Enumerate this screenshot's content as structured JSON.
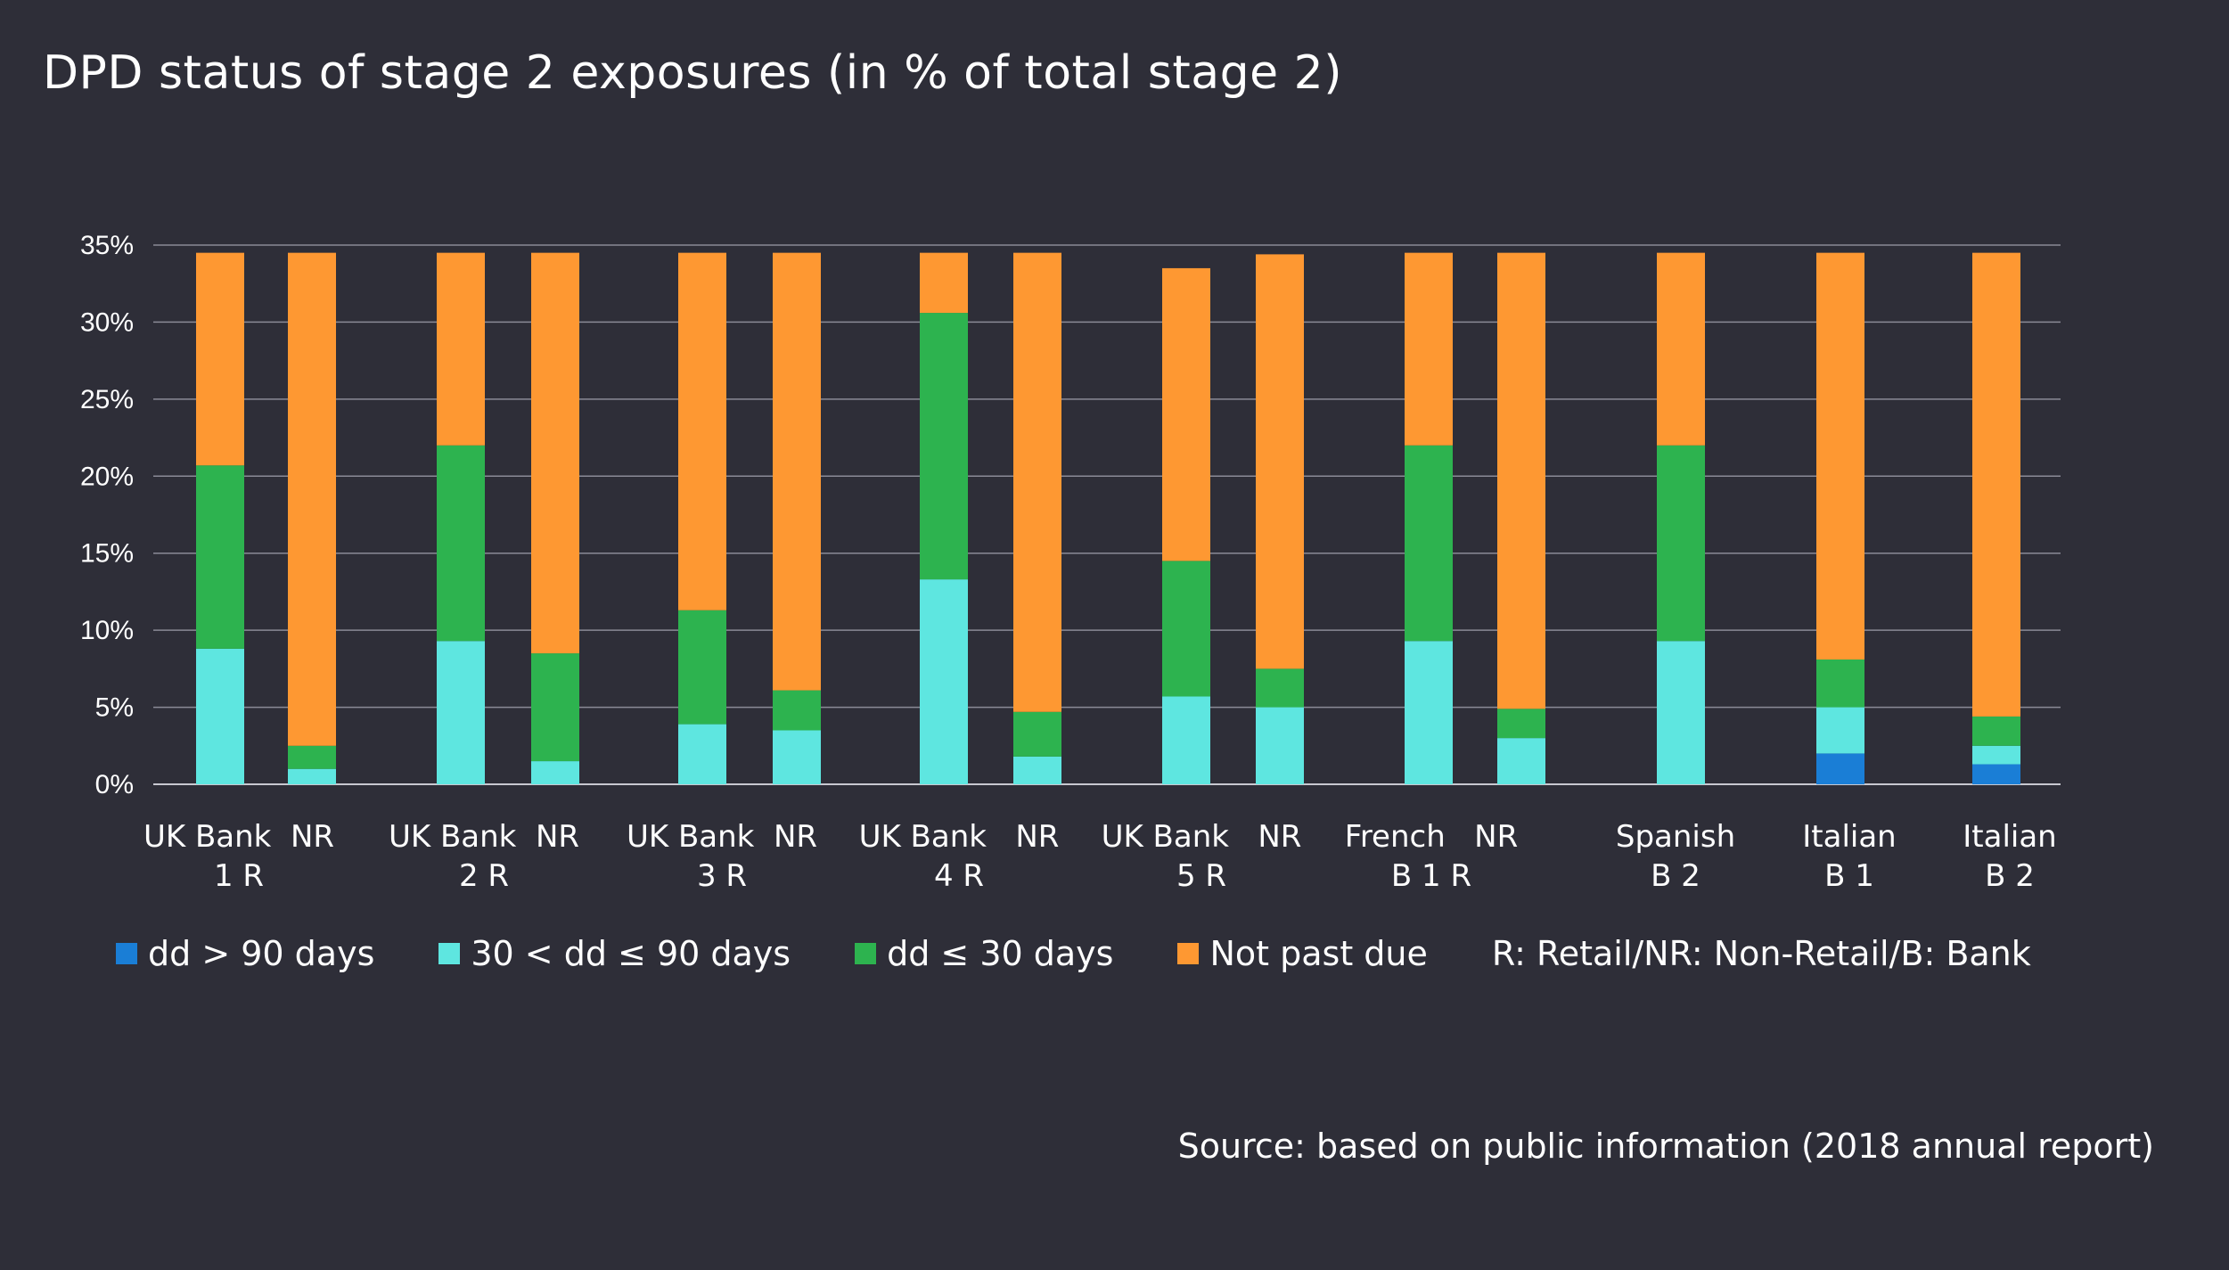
{
  "chart_data": {
    "type": "bar",
    "stacked": true,
    "title": "DPD status of stage 2 exposures (in % of total stage 2)",
    "xlabel": "",
    "ylabel": "",
    "ylim": [
      0,
      35
    ],
    "yticks": [
      "0%",
      "5%",
      "10%",
      "15%",
      "20%",
      "25%",
      "30%",
      "35%"
    ],
    "grid": true,
    "legend_position": "bottom",
    "categories": [
      "UK Bank 1 R",
      "NR",
      "UK Bank 2 R",
      "NR",
      "UK Bank 3 R",
      "NR",
      "UK Bank 4 R",
      "NR",
      "UK Bank 5 R",
      "NR",
      "French B 1 R",
      "NR",
      "Spanish B 2",
      "Italian B 1",
      "Italian B 2"
    ],
    "category_labels": [
      {
        "line1": "UK Bank  NR",
        "line2": "1 R"
      },
      {
        "line1": "UK Bank  NR",
        "line2": "2 R"
      },
      {
        "line1": "UK Bank  NR",
        "line2": "3 R"
      },
      {
        "line1": "UK Bank   NR",
        "line2": "4 R"
      },
      {
        "line1": "UK Bank   NR",
        "line2": "5 R"
      },
      {
        "line1": "French   NR",
        "line2": "B 1 R"
      },
      {
        "line1": "Spanish",
        "line2": "B 2"
      },
      {
        "line1": "Italian",
        "line2": "B 1"
      },
      {
        "line1": "Italian",
        "line2": "B 2"
      }
    ],
    "series": [
      {
        "name": "dd > 90 days",
        "color": "#1a7ed6",
        "values": [
          0,
          0,
          0,
          0,
          0,
          0,
          0,
          0,
          0,
          0,
          0,
          0,
          0,
          2.0,
          1.3
        ]
      },
      {
        "name": "30 < dd ≤ 90 days",
        "color": "#5ee6e0",
        "values": [
          8.8,
          1.0,
          9.3,
          1.5,
          3.9,
          3.5,
          13.3,
          1.8,
          5.7,
          5.0,
          9.3,
          3.0,
          9.3,
          3.0,
          1.2
        ]
      },
      {
        "name": "dd ≤ 30 days",
        "color": "#2db34f",
        "values": [
          11.9,
          1.5,
          12.7,
          7.0,
          7.4,
          2.6,
          17.3,
          2.9,
          8.8,
          2.5,
          12.7,
          1.9,
          12.7,
          3.1,
          1.9
        ]
      },
      {
        "name": "Not past due",
        "color": "#fe9832",
        "values": [
          13.8,
          32.0,
          12.5,
          26.0,
          23.2,
          28.4,
          3.9,
          29.8,
          19.0,
          26.9,
          12.5,
          29.6,
          12.5,
          26.4,
          30.1
        ]
      }
    ],
    "annotation": "R: Retail/NR: Non-Retail/B: Bank",
    "source": "Source: based on public information (2018 annual report)"
  }
}
